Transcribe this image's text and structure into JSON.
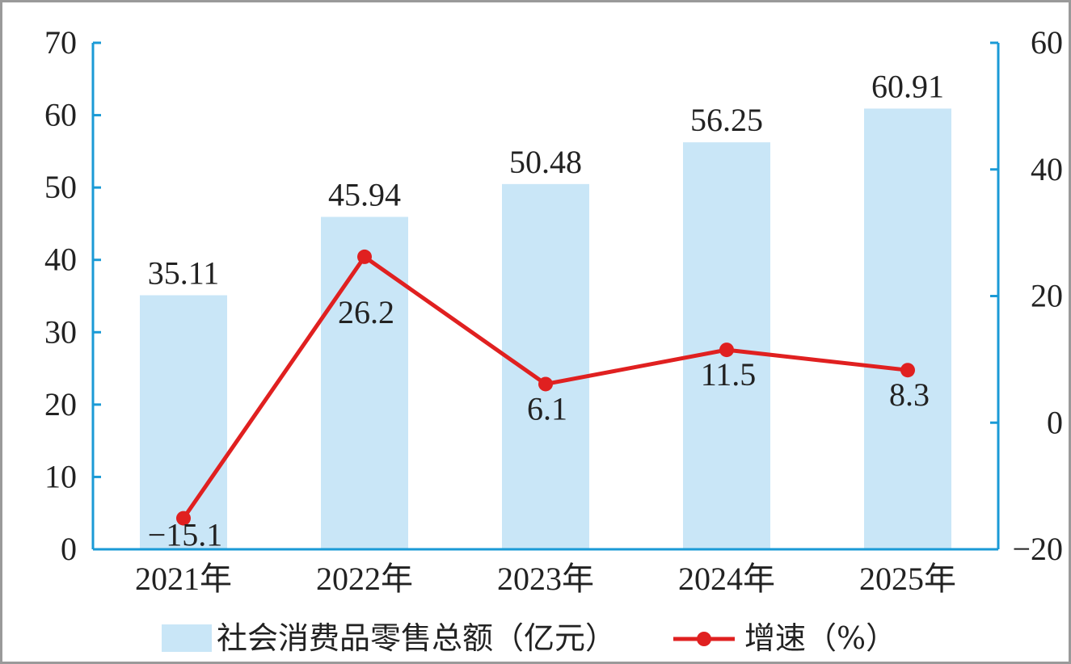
{
  "chart_data": {
    "type": "bar+line",
    "categories": [
      "2021年",
      "2022年",
      "2023年",
      "2024年",
      "2025年"
    ],
    "series": [
      {
        "name": "社会消费品零售总额（亿元）",
        "type": "bar",
        "axis": "left",
        "values": [
          35.11,
          45.94,
          50.48,
          56.25,
          60.91
        ],
        "labels": [
          "35.11",
          "45.94",
          "50.48",
          "56.25",
          "60.91"
        ],
        "color": "#c9e6f7"
      },
      {
        "name": "增速（%）",
        "type": "line",
        "axis": "right",
        "values": [
          -15.1,
          26.2,
          6.1,
          11.5,
          8.3
        ],
        "labels": [
          "−15.1",
          "26.2",
          "6.1",
          "11.5",
          "8.3"
        ],
        "color": "#e02020"
      }
    ],
    "left_axis": {
      "ylim": [
        0,
        70
      ],
      "ticks": [
        0,
        10,
        20,
        30,
        40,
        50,
        60,
        70
      ],
      "tick_labels": [
        "0",
        "10",
        "20",
        "30",
        "40",
        "50",
        "60",
        "70"
      ]
    },
    "right_axis": {
      "ylim": [
        -20,
        60
      ],
      "ticks": [
        -20,
        0,
        20,
        40,
        60
      ],
      "tick_labels": [
        "−20",
        "0",
        "20",
        "40",
        "60"
      ]
    },
    "axis_color": "#1a9ad6",
    "grid": false,
    "legend_position": "bottom"
  }
}
